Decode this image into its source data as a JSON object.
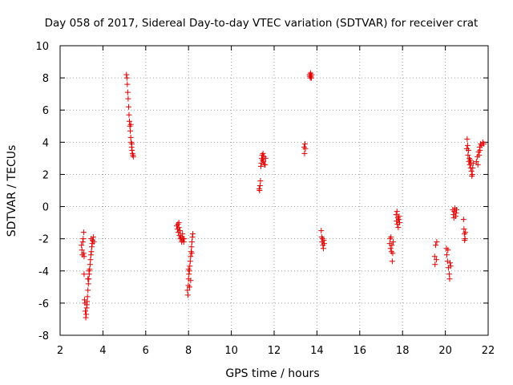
{
  "chart_data": {
    "type": "scatter",
    "title": "Day 058 of 2017, Sidereal Day-to-day VTEC variation (SDTVAR) for receiver crat",
    "xlabel": "GPS time / hours",
    "ylabel": "SDTVAR / TECUs",
    "xlim": [
      2,
      22
    ],
    "ylim": [
      -8,
      10
    ],
    "xticks": [
      2,
      4,
      6,
      8,
      10,
      12,
      14,
      16,
      18,
      20,
      22
    ],
    "yticks": [
      -8,
      -6,
      -4,
      -2,
      0,
      2,
      4,
      6,
      8,
      10
    ],
    "grid": true,
    "marker": "+",
    "color": "#e00000",
    "series": [
      {
        "name": "SDTVAR",
        "points": [
          [
            3.0,
            -2.4
          ],
          [
            3.02,
            -2.7
          ],
          [
            3.04,
            -3.0
          ],
          [
            3.06,
            -2.2
          ],
          [
            3.08,
            -2.0
          ],
          [
            3.1,
            -1.6
          ],
          [
            3.1,
            -2.9
          ],
          [
            3.12,
            -3.1
          ],
          [
            3.12,
            -4.2
          ],
          [
            3.14,
            -5.8
          ],
          [
            3.16,
            -6.0
          ],
          [
            3.18,
            -6.5
          ],
          [
            3.2,
            -6.9
          ],
          [
            3.22,
            -6.7
          ],
          [
            3.24,
            -6.3
          ],
          [
            3.26,
            -5.9
          ],
          [
            3.28,
            -5.6
          ],
          [
            3.3,
            -5.2
          ],
          [
            3.32,
            -4.8
          ],
          [
            3.34,
            -4.5
          ],
          [
            3.36,
            -4.2
          ],
          [
            3.38,
            -3.9
          ],
          [
            3.4,
            -3.6
          ],
          [
            3.42,
            -3.3
          ],
          [
            3.44,
            -3.0
          ],
          [
            3.46,
            -2.8
          ],
          [
            3.48,
            -2.5
          ],
          [
            3.5,
            -2.3
          ],
          [
            3.52,
            -2.1
          ],
          [
            3.55,
            -1.9
          ],
          [
            3.58,
            -2.2
          ],
          [
            3.25,
            -6.1
          ],
          [
            3.3,
            -4.5
          ],
          [
            3.35,
            -4.0
          ],
          [
            3.45,
            -2.0
          ],
          [
            5.1,
            8.2
          ],
          [
            5.12,
            8.0
          ],
          [
            5.14,
            7.6
          ],
          [
            5.16,
            7.1
          ],
          [
            5.18,
            6.7
          ],
          [
            5.2,
            6.2
          ],
          [
            5.22,
            5.7
          ],
          [
            5.24,
            5.3
          ],
          [
            5.26,
            5.0
          ],
          [
            5.28,
            4.7
          ],
          [
            5.3,
            4.3
          ],
          [
            5.32,
            4.0
          ],
          [
            5.34,
            3.7
          ],
          [
            5.36,
            3.5
          ],
          [
            5.38,
            3.3
          ],
          [
            5.4,
            3.2
          ],
          [
            5.42,
            3.1
          ],
          [
            5.3,
            5.1
          ],
          [
            5.35,
            3.9
          ],
          [
            7.45,
            -1.2
          ],
          [
            7.48,
            -1.4
          ],
          [
            7.5,
            -1.1
          ],
          [
            7.52,
            -1.6
          ],
          [
            7.55,
            -1.3
          ],
          [
            7.58,
            -1.8
          ],
          [
            7.6,
            -1.5
          ],
          [
            7.62,
            -2.0
          ],
          [
            7.65,
            -1.9
          ],
          [
            7.68,
            -2.2
          ],
          [
            7.7,
            -2.1
          ],
          [
            7.72,
            -1.7
          ],
          [
            7.75,
            -2.0
          ],
          [
            7.78,
            -2.2
          ],
          [
            7.8,
            -2.0
          ],
          [
            7.55,
            -1.0
          ],
          [
            7.95,
            -5.2
          ],
          [
            7.97,
            -5.5
          ],
          [
            7.99,
            -4.9
          ],
          [
            8.0,
            -4.5
          ],
          [
            8.02,
            -4.2
          ],
          [
            8.04,
            -4.0
          ],
          [
            8.06,
            -3.7
          ],
          [
            8.08,
            -3.4
          ],
          [
            8.1,
            -3.1
          ],
          [
            8.12,
            -2.8
          ],
          [
            8.14,
            -2.5
          ],
          [
            8.16,
            -2.2
          ],
          [
            8.18,
            -1.9
          ],
          [
            8.2,
            -1.7
          ],
          [
            8.0,
            -3.9
          ],
          [
            8.05,
            -5.0
          ],
          [
            8.1,
            -4.6
          ],
          [
            8.15,
            -2.9
          ],
          [
            11.3,
            1.1
          ],
          [
            11.32,
            1.0
          ],
          [
            11.34,
            1.3
          ],
          [
            11.36,
            1.6
          ],
          [
            11.38,
            2.5
          ],
          [
            11.4,
            2.7
          ],
          [
            11.42,
            3.0
          ],
          [
            11.44,
            3.2
          ],
          [
            11.46,
            2.9
          ],
          [
            11.48,
            3.3
          ],
          [
            11.5,
            2.8
          ],
          [
            11.52,
            3.1
          ],
          [
            11.55,
            2.6
          ],
          [
            11.58,
            2.6
          ],
          [
            11.6,
            3.0
          ],
          [
            13.4,
            3.7
          ],
          [
            13.42,
            3.3
          ],
          [
            13.44,
            3.9
          ],
          [
            13.46,
            3.6
          ],
          [
            13.65,
            8.2
          ],
          [
            13.67,
            8.1
          ],
          [
            13.69,
            8.0
          ],
          [
            13.7,
            8.3
          ],
          [
            13.72,
            8.1
          ],
          [
            13.74,
            8.0
          ],
          [
            13.76,
            8.2
          ],
          [
            14.2,
            -1.5
          ],
          [
            14.22,
            -1.9
          ],
          [
            14.24,
            -2.2
          ],
          [
            14.26,
            -2.0
          ],
          [
            14.28,
            -2.4
          ],
          [
            14.3,
            -2.6
          ],
          [
            14.32,
            -2.1
          ],
          [
            14.34,
            -2.3
          ],
          [
            17.4,
            -2.3
          ],
          [
            17.42,
            -2.0
          ],
          [
            17.44,
            -2.6
          ],
          [
            17.46,
            -1.9
          ],
          [
            17.48,
            -2.8
          ],
          [
            17.5,
            -2.4
          ],
          [
            17.52,
            -3.4
          ],
          [
            17.54,
            -2.9
          ],
          [
            17.56,
            -2.2
          ],
          [
            17.7,
            -0.5
          ],
          [
            17.72,
            -0.9
          ],
          [
            17.74,
            -0.3
          ],
          [
            17.76,
            -1.1
          ],
          [
            17.78,
            -0.7
          ],
          [
            17.8,
            -1.3
          ],
          [
            17.82,
            -0.8
          ],
          [
            17.84,
            -0.6
          ],
          [
            17.86,
            -1.0
          ],
          [
            19.5,
            -3.1
          ],
          [
            19.52,
            -3.6
          ],
          [
            19.55,
            -2.4
          ],
          [
            19.58,
            -3.3
          ],
          [
            19.6,
            -2.2
          ],
          [
            20.05,
            -2.6
          ],
          [
            20.07,
            -3.0
          ],
          [
            20.1,
            -3.4
          ],
          [
            20.12,
            -2.7
          ],
          [
            20.15,
            -3.8
          ],
          [
            20.18,
            -4.2
          ],
          [
            20.2,
            -4.5
          ],
          [
            20.22,
            -3.5
          ],
          [
            20.25,
            -3.7
          ],
          [
            20.35,
            -0.2
          ],
          [
            20.38,
            -0.5
          ],
          [
            20.4,
            -0.7
          ],
          [
            20.42,
            -0.3
          ],
          [
            20.45,
            -0.1
          ],
          [
            20.48,
            -0.6
          ],
          [
            20.5,
            -0.4
          ],
          [
            20.52,
            -0.2
          ],
          [
            20.85,
            -0.8
          ],
          [
            20.87,
            -1.4
          ],
          [
            20.89,
            -1.7
          ],
          [
            20.9,
            -2.1
          ],
          [
            20.92,
            -2.0
          ],
          [
            20.94,
            -1.6
          ],
          [
            21.0,
            3.6
          ],
          [
            21.02,
            4.2
          ],
          [
            21.04,
            3.8
          ],
          [
            21.06,
            3.2
          ],
          [
            21.08,
            3.5
          ],
          [
            21.1,
            2.8
          ],
          [
            21.12,
            3.0
          ],
          [
            21.14,
            2.6
          ],
          [
            21.16,
            2.9
          ],
          [
            21.18,
            2.4
          ],
          [
            21.2,
            2.7
          ],
          [
            21.22,
            2.2
          ],
          [
            21.24,
            1.9
          ],
          [
            21.26,
            2.0
          ],
          [
            21.28,
            2.4
          ],
          [
            21.3,
            2.7
          ],
          [
            21.45,
            2.8
          ],
          [
            21.5,
            3.1
          ],
          [
            21.52,
            2.6
          ],
          [
            21.55,
            3.4
          ],
          [
            21.58,
            3.2
          ],
          [
            21.6,
            3.7
          ],
          [
            21.62,
            3.5
          ],
          [
            21.65,
            3.9
          ],
          [
            21.7,
            3.8
          ],
          [
            21.75,
            4.0
          ],
          [
            21.8,
            3.9
          ]
        ]
      }
    ]
  }
}
